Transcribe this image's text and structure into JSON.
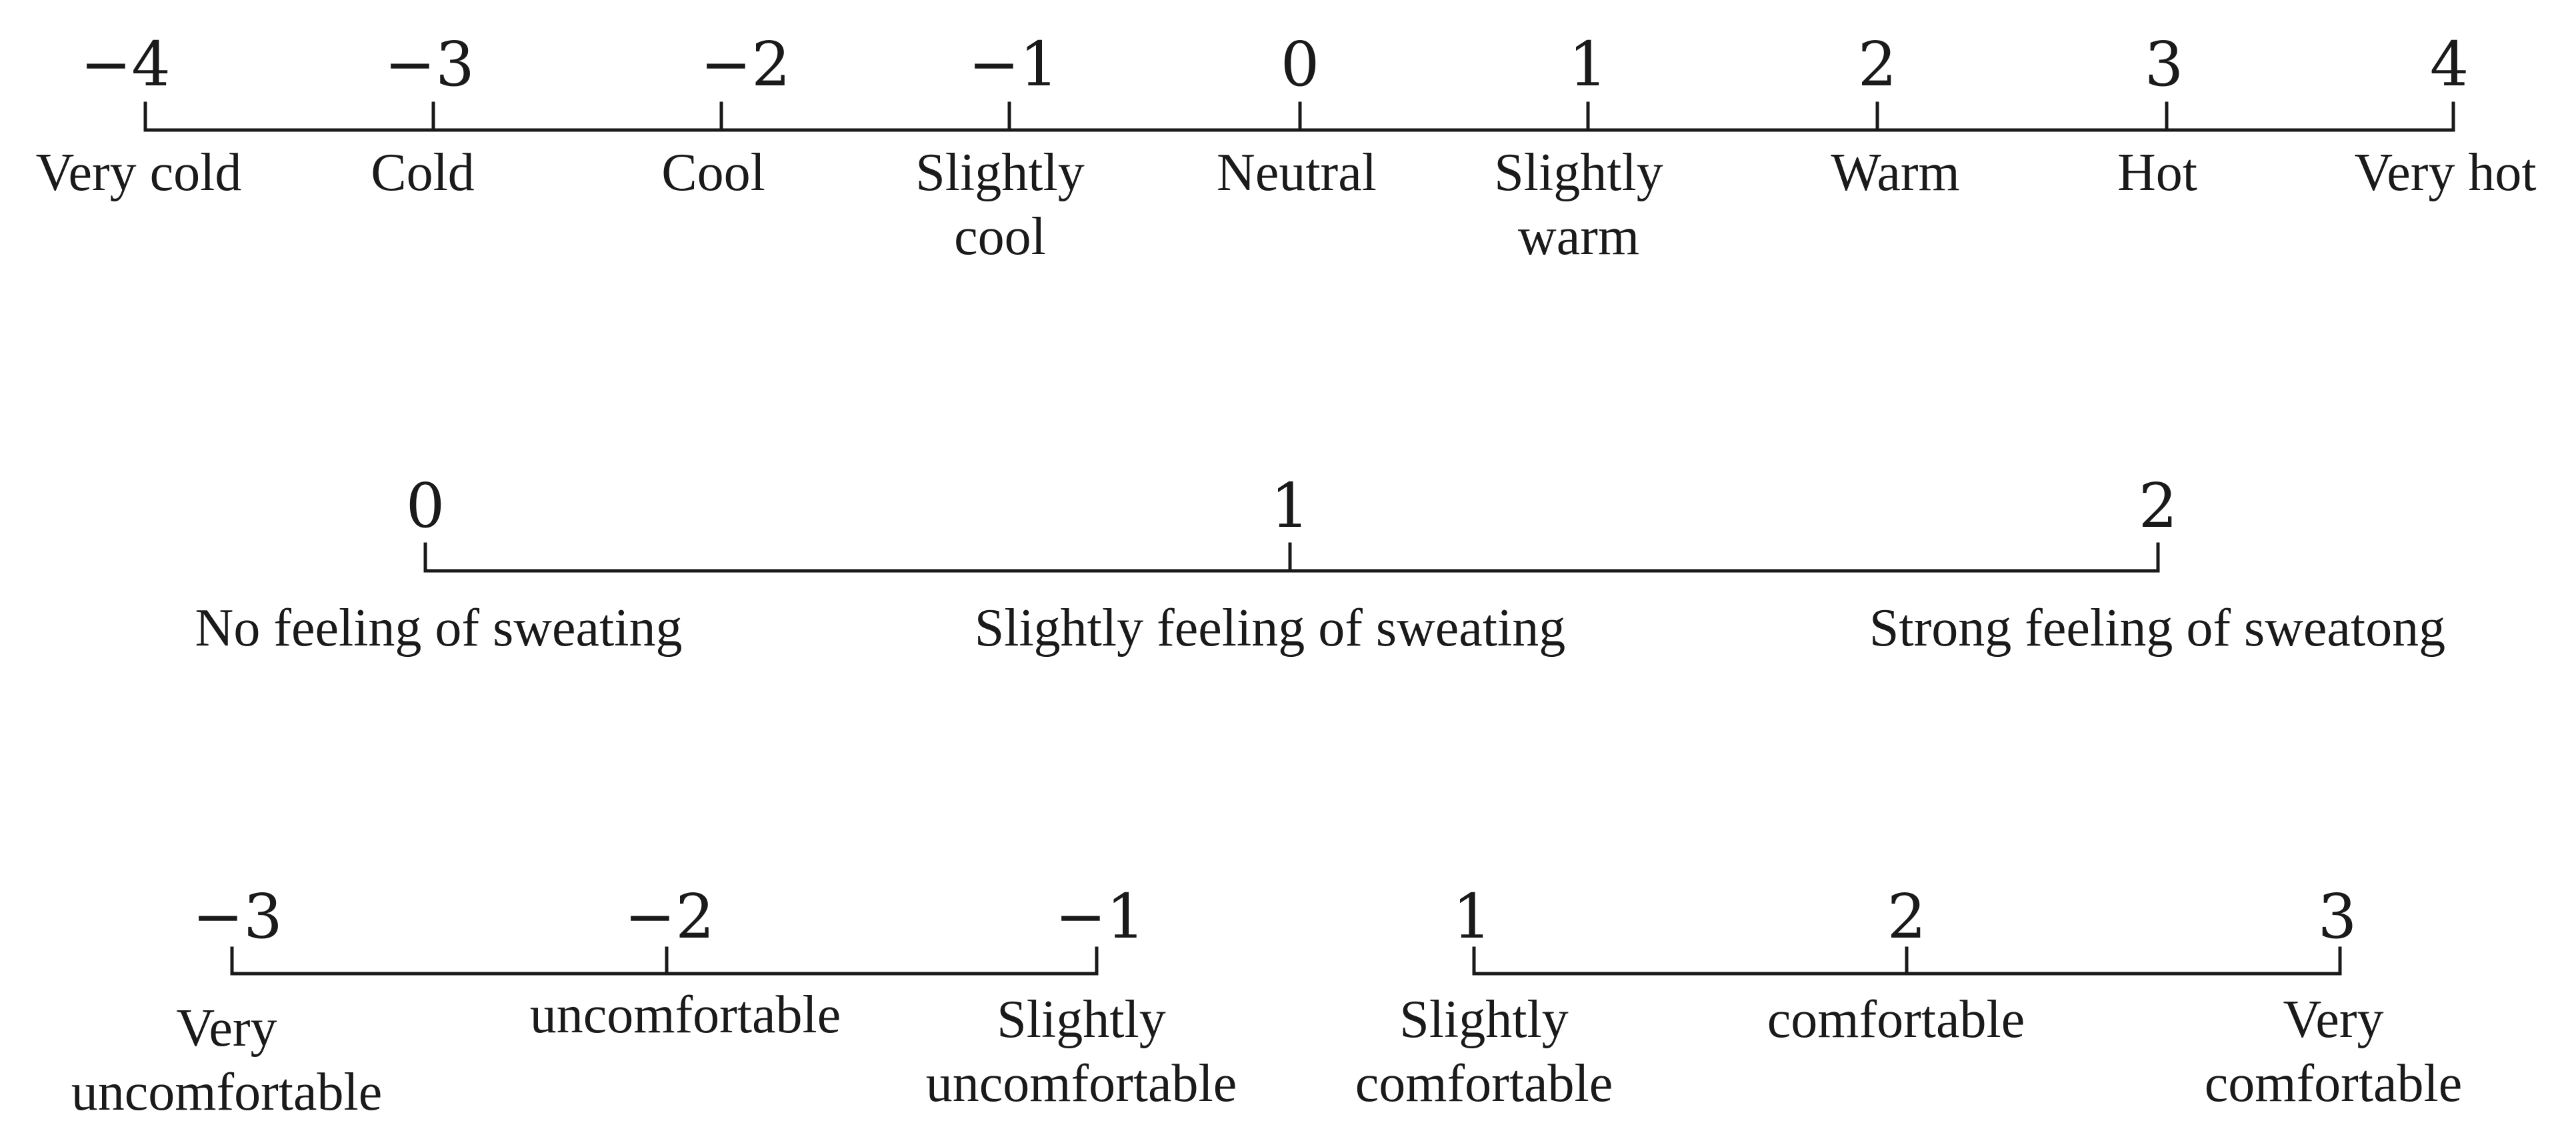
{
  "scales": [
    {
      "id": "thermal-sensation",
      "ticks": [
        {
          "value": "−4",
          "label": [
            "Very cold"
          ]
        },
        {
          "value": "−3",
          "label": [
            "Cold"
          ]
        },
        {
          "value": "−2",
          "label": [
            "Cool"
          ]
        },
        {
          "value": "−1",
          "label": [
            "Slightly",
            "cool"
          ]
        },
        {
          "value": "0",
          "label": [
            "Neutral"
          ]
        },
        {
          "value": "1",
          "label": [
            "Slightly",
            "warm"
          ]
        },
        {
          "value": "2",
          "label": [
            "Warm"
          ]
        },
        {
          "value": "3",
          "label": [
            "Hot"
          ]
        },
        {
          "value": "4",
          "label": [
            "Very hot"
          ]
        }
      ]
    },
    {
      "id": "sweating-feeling",
      "ticks": [
        {
          "value": "0",
          "label": [
            "No feeling of sweating"
          ]
        },
        {
          "value": "1",
          "label": [
            "Slightly feeling of sweating"
          ]
        },
        {
          "value": "2",
          "label": [
            "Strong feeling of sweatong"
          ]
        }
      ]
    },
    {
      "id": "discomfort",
      "ticks": [
        {
          "value": "−3",
          "label": [
            "Very",
            "uncomfortable"
          ]
        },
        {
          "value": "−2",
          "label": [
            "uncomfortable"
          ]
        },
        {
          "value": "−1",
          "label": [
            "Slightly",
            "uncomfortable"
          ]
        }
      ]
    },
    {
      "id": "comfort",
      "ticks": [
        {
          "value": "1",
          "label": [
            "Slightly",
            "comfortable"
          ]
        },
        {
          "value": "2",
          "label": [
            "comfortable"
          ]
        },
        {
          "value": "3",
          "label": [
            "Very",
            "comfortable"
          ]
        }
      ]
    }
  ]
}
